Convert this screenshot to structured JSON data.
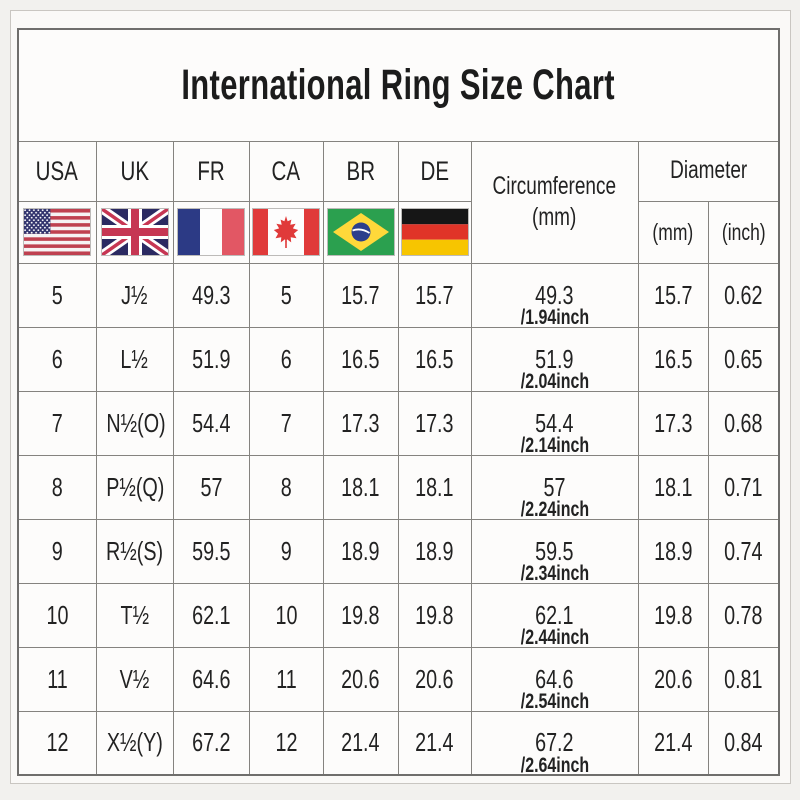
{
  "title": "International Ring Size Chart",
  "table": {
    "columns": [
      {
        "code": "USA",
        "flag_icon": "usa-flag-icon"
      },
      {
        "code": "UK",
        "flag_icon": "uk-flag-icon"
      },
      {
        "code": "FR",
        "flag_icon": "fr-flag-icon"
      },
      {
        "code": "CA",
        "flag_icon": "ca-flag-icon"
      },
      {
        "code": "BR",
        "flag_icon": "br-flag-icon"
      },
      {
        "code": "DE",
        "flag_icon": "de-flag-icon"
      }
    ],
    "circumference_header": {
      "line1": "Circumference",
      "line2": "(mm)"
    },
    "diameter_header": "Diameter",
    "diameter_sub_mm": "(mm)",
    "diameter_sub_inch": "(inch)",
    "rows": [
      {
        "usa": "5",
        "uk": "J½",
        "fr": "49.3",
        "ca": "5",
        "br": "15.7",
        "de": "15.7",
        "circumference_mm": "49.3",
        "circumference_inch": "/1.94inch",
        "diameter_mm": "15.7",
        "diameter_inch": "0.62"
      },
      {
        "usa": "6",
        "uk": "L½",
        "fr": "51.9",
        "ca": "6",
        "br": "16.5",
        "de": "16.5",
        "circumference_mm": "51.9",
        "circumference_inch": "/2.04inch",
        "diameter_mm": "16.5",
        "diameter_inch": "0.65"
      },
      {
        "usa": "7",
        "uk": "N½(O)",
        "fr": "54.4",
        "ca": "7",
        "br": "17.3",
        "de": "17.3",
        "circumference_mm": "54.4",
        "circumference_inch": "/2.14inch",
        "diameter_mm": "17.3",
        "diameter_inch": "0.68"
      },
      {
        "usa": "8",
        "uk": "P½(Q)",
        "fr": "57",
        "ca": "8",
        "br": "18.1",
        "de": "18.1",
        "circumference_mm": "57",
        "circumference_inch": "/2.24inch",
        "diameter_mm": "18.1",
        "diameter_inch": "0.71"
      },
      {
        "usa": "9",
        "uk": "R½(S)",
        "fr": "59.5",
        "ca": "9",
        "br": "18.9",
        "de": "18.9",
        "circumference_mm": "59.5",
        "circumference_inch": "/2.34inch",
        "diameter_mm": "18.9",
        "diameter_inch": "0.74"
      },
      {
        "usa": "10",
        "uk": "T½",
        "fr": "62.1",
        "ca": "10",
        "br": "19.8",
        "de": "19.8",
        "circumference_mm": "62.1",
        "circumference_inch": "/2.44inch",
        "diameter_mm": "19.8",
        "diameter_inch": "0.78"
      },
      {
        "usa": "11",
        "uk": "V½",
        "fr": "64.6",
        "ca": "11",
        "br": "20.6",
        "de": "20.6",
        "circumference_mm": "64.6",
        "circumference_inch": "/2.54inch",
        "diameter_mm": "20.6",
        "diameter_inch": "0.81"
      },
      {
        "usa": "12",
        "uk": "X½(Y)",
        "fr": "67.2",
        "ca": "12",
        "br": "21.4",
        "de": "21.4",
        "circumference_mm": "67.2",
        "circumference_inch": "/2.64inch",
        "diameter_mm": "21.4",
        "diameter_inch": "0.84"
      }
    ]
  },
  "chart_data": {
    "type": "table",
    "title": "International Ring Size Chart",
    "columns": [
      "USA",
      "UK",
      "FR",
      "CA",
      "BR",
      "DE",
      "Circumference (mm)",
      "Diameter (mm)",
      "Diameter (inch)"
    ],
    "rows": [
      [
        "5",
        "J½",
        "49.3",
        "5",
        "15.7",
        "15.7",
        "49.3 /1.94inch",
        "15.7",
        "0.62"
      ],
      [
        "6",
        "L½",
        "51.9",
        "6",
        "16.5",
        "16.5",
        "51.9 /2.04inch",
        "16.5",
        "0.65"
      ],
      [
        "7",
        "N½(O)",
        "54.4",
        "7",
        "17.3",
        "17.3",
        "54.4 /2.14inch",
        "17.3",
        "0.68"
      ],
      [
        "8",
        "P½(Q)",
        "57",
        "8",
        "18.1",
        "18.1",
        "57 /2.24inch",
        "18.1",
        "0.71"
      ],
      [
        "9",
        "R½(S)",
        "59.5",
        "9",
        "18.9",
        "18.9",
        "59.5 /2.34inch",
        "18.9",
        "0.74"
      ],
      [
        "10",
        "T½",
        "62.1",
        "10",
        "19.8",
        "19.8",
        "62.1 /2.44inch",
        "19.8",
        "0.78"
      ],
      [
        "11",
        "V½",
        "64.6",
        "11",
        "20.6",
        "20.6",
        "64.6 /2.54inch",
        "20.6",
        "0.81"
      ],
      [
        "12",
        "X½(Y)",
        "67.2",
        "12",
        "21.4",
        "21.4",
        "67.2 /2.64inch",
        "21.4",
        "0.84"
      ]
    ]
  },
  "colors": {
    "page_background": "#f2f1ee",
    "grid_border": "#85837f",
    "text": "#222222",
    "flags": {
      "us_blue": "#32346d",
      "us_red": "#bf4150",
      "uk_blue": "#2b2a62",
      "uk_red": "#c63653",
      "fr_blue": "#2c3a85",
      "fr_red": "#e25764",
      "ca_red": "#e03a3a",
      "br_green": "#2ba04f",
      "br_yellow": "#ffd83a",
      "br_blue": "#2b3f8c",
      "de_black": "#161616",
      "de_red": "#e03428",
      "de_gold": "#f7c500"
    }
  }
}
